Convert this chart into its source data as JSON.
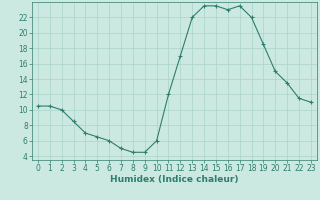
{
  "title": "",
  "xlabel": "Humidex (Indice chaleur)",
  "x": [
    0,
    1,
    2,
    3,
    4,
    5,
    6,
    7,
    8,
    9,
    10,
    11,
    12,
    13,
    14,
    15,
    16,
    17,
    18,
    19,
    20,
    21,
    22,
    23
  ],
  "y": [
    10.5,
    10.5,
    10,
    8.5,
    7,
    6.5,
    6,
    5,
    4.5,
    4.5,
    6,
    12,
    17,
    22,
    23.5,
    23.5,
    23,
    23.5,
    22,
    18.5,
    15,
    13.5,
    11.5,
    11
  ],
  "line_color": "#2e7d6e",
  "marker": "+",
  "marker_size": 3,
  "marker_linewidth": 0.8,
  "linewidth": 0.8,
  "bg_color": "#cce9e1",
  "grid_color": "#aad4ca",
  "xlim": [
    -0.5,
    23.5
  ],
  "ylim": [
    3.5,
    24
  ],
  "yticks": [
    4,
    6,
    8,
    10,
    12,
    14,
    16,
    18,
    20,
    22
  ],
  "xticks": [
    0,
    1,
    2,
    3,
    4,
    5,
    6,
    7,
    8,
    9,
    10,
    11,
    12,
    13,
    14,
    15,
    16,
    17,
    18,
    19,
    20,
    21,
    22,
    23
  ],
  "tick_labelsize": 5.5,
  "xlabel_fontsize": 6.5
}
